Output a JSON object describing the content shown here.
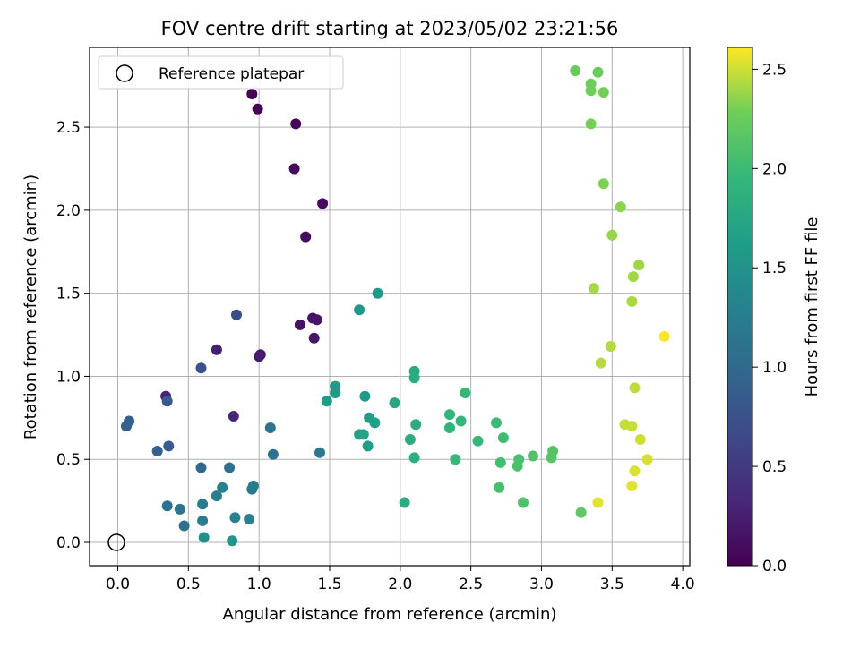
{
  "chart_data": {
    "type": "scatter",
    "title": "FOV centre drift starting at 2023/05/02 23:21:56",
    "xlabel": "Angular distance from reference (arcmin)",
    "ylabel": "Rotation from reference (arcmin)",
    "xlim": [
      -0.2,
      4.05
    ],
    "ylim": [
      -0.14,
      2.98
    ],
    "xticks": [
      "0.0",
      "0.5",
      "1.0",
      "1.5",
      "2.0",
      "2.5",
      "3.0",
      "3.5",
      "4.0"
    ],
    "xtick_values": [
      0,
      0.5,
      1,
      1.5,
      2,
      2.5,
      3,
      3.5,
      4
    ],
    "yticks": [
      "0.0",
      "0.5",
      "1.0",
      "1.5",
      "2.0",
      "2.5"
    ],
    "ytick_values": [
      0,
      0.5,
      1,
      1.5,
      2,
      2.5
    ],
    "grid": true,
    "legend": {
      "position": "upper-left",
      "entries": [
        {
          "label": "Reference platepar",
          "marker": "hollow-circle",
          "x": 0,
          "y": 0
        }
      ]
    },
    "colorbar": {
      "label": "Hours from first FF file",
      "colormap": "viridis",
      "range": [
        0,
        2.61
      ],
      "ticks": [
        "0.0",
        "0.5",
        "1.0",
        "1.5",
        "2.0",
        "2.5"
      ],
      "tick_values": [
        0,
        0.5,
        1,
        1.5,
        2,
        2.5
      ]
    },
    "series": [
      {
        "columns": [
          "x",
          "y",
          "hours"
        ],
        "points": [
          [
            0.95,
            2.7,
            0.0
          ],
          [
            0.99,
            2.61,
            0.02
          ],
          [
            1.26,
            2.52,
            0.04
          ],
          [
            1.25,
            2.25,
            0.06
          ],
          [
            1.45,
            2.04,
            0.08
          ],
          [
            1.33,
            1.84,
            0.1
          ],
          [
            1.29,
            1.31,
            0.13
          ],
          [
            1.38,
            1.35,
            0.15
          ],
          [
            1.41,
            1.34,
            0.17
          ],
          [
            1.39,
            1.23,
            0.19
          ],
          [
            1.01,
            1.13,
            0.21
          ],
          [
            1.0,
            1.12,
            0.23
          ],
          [
            0.7,
            1.16,
            0.25
          ],
          [
            0.34,
            0.88,
            0.29
          ],
          [
            0.82,
            0.76,
            0.31
          ],
          [
            0.84,
            1.37,
            0.7
          ],
          [
            0.59,
            1.05,
            0.74
          ],
          [
            0.35,
            0.85,
            0.84
          ],
          [
            0.06,
            0.7,
            0.89
          ],
          [
            0.08,
            0.73,
            0.93
          ],
          [
            0.36,
            0.58,
            0.86
          ],
          [
            0.28,
            0.55,
            0.91
          ],
          [
            0.59,
            0.45,
            0.99
          ],
          [
            0.79,
            0.45,
            1.06
          ],
          [
            1.1,
            0.53,
            1.08
          ],
          [
            1.08,
            0.69,
            1.14
          ],
          [
            1.43,
            0.54,
            1.19
          ],
          [
            0.35,
            0.22,
            1.1
          ],
          [
            0.44,
            0.2,
            1.11
          ],
          [
            0.47,
            0.1,
            1.13
          ],
          [
            0.6,
            0.23,
            1.22
          ],
          [
            0.6,
            0.13,
            1.26
          ],
          [
            0.7,
            0.28,
            1.24
          ],
          [
            0.74,
            0.33,
            1.31
          ],
          [
            0.95,
            0.32,
            1.2
          ],
          [
            0.96,
            0.34,
            1.23
          ],
          [
            0.83,
            0.15,
            1.29
          ],
          [
            0.93,
            0.14,
            1.32
          ],
          [
            0.61,
            0.03,
            1.44
          ],
          [
            0.81,
            0.01,
            1.53
          ],
          [
            1.71,
            1.4,
            1.55
          ],
          [
            1.84,
            1.5,
            1.56
          ],
          [
            1.54,
            0.94,
            1.57
          ],
          [
            1.54,
            0.9,
            1.58
          ],
          [
            1.48,
            0.85,
            1.6
          ],
          [
            1.75,
            0.88,
            1.6
          ],
          [
            1.78,
            0.75,
            1.63
          ],
          [
            1.82,
            0.72,
            1.66
          ],
          [
            1.71,
            0.65,
            1.68
          ],
          [
            1.74,
            0.65,
            1.7
          ],
          [
            1.77,
            0.58,
            1.65
          ],
          [
            1.96,
            0.84,
            1.75
          ],
          [
            2.1,
            1.03,
            1.78
          ],
          [
            2.1,
            0.99,
            1.8
          ],
          [
            2.11,
            0.71,
            1.81
          ],
          [
            2.07,
            0.62,
            1.83
          ],
          [
            2.1,
            0.51,
            1.86
          ],
          [
            2.03,
            0.24,
            1.82
          ],
          [
            2.35,
            0.77,
            1.9
          ],
          [
            2.35,
            0.69,
            1.92
          ],
          [
            2.43,
            0.73,
            1.93
          ],
          [
            2.46,
            0.9,
            1.95
          ],
          [
            2.39,
            0.5,
            1.97
          ],
          [
            2.55,
            0.61,
            1.96
          ],
          [
            2.68,
            0.72,
            2.0
          ],
          [
            2.73,
            0.63,
            2.02
          ],
          [
            2.71,
            0.48,
            2.04
          ],
          [
            2.7,
            0.33,
            2.06
          ],
          [
            2.84,
            0.5,
            2.08
          ],
          [
            2.83,
            0.46,
            2.09
          ],
          [
            2.87,
            0.24,
            2.1
          ],
          [
            2.94,
            0.52,
            2.12
          ],
          [
            3.08,
            0.55,
            2.14
          ],
          [
            3.07,
            0.51,
            2.15
          ],
          [
            3.28,
            0.18,
            2.19
          ],
          [
            3.24,
            2.84,
            2.24
          ],
          [
            3.4,
            2.83,
            2.25
          ],
          [
            3.35,
            2.76,
            2.27
          ],
          [
            3.35,
            2.72,
            2.28
          ],
          [
            3.44,
            2.71,
            2.29
          ],
          [
            3.35,
            2.52,
            2.3
          ],
          [
            3.44,
            2.16,
            2.32
          ],
          [
            3.56,
            2.02,
            2.35
          ],
          [
            3.5,
            1.85,
            2.37
          ],
          [
            3.69,
            1.67,
            2.39
          ],
          [
            3.65,
            1.6,
            2.4
          ],
          [
            3.37,
            1.53,
            2.41
          ],
          [
            3.64,
            1.45,
            2.42
          ],
          [
            3.49,
            1.18,
            2.44
          ],
          [
            3.42,
            1.08,
            2.45
          ],
          [
            3.66,
            0.93,
            2.46
          ],
          [
            3.59,
            0.71,
            2.48
          ],
          [
            3.64,
            0.7,
            2.49
          ],
          [
            3.7,
            0.62,
            2.5
          ],
          [
            3.75,
            0.5,
            2.52
          ],
          [
            3.66,
            0.43,
            2.53
          ],
          [
            3.64,
            0.34,
            2.54
          ],
          [
            3.4,
            0.24,
            2.55
          ],
          [
            3.87,
            1.24,
            2.6
          ]
        ]
      }
    ]
  }
}
